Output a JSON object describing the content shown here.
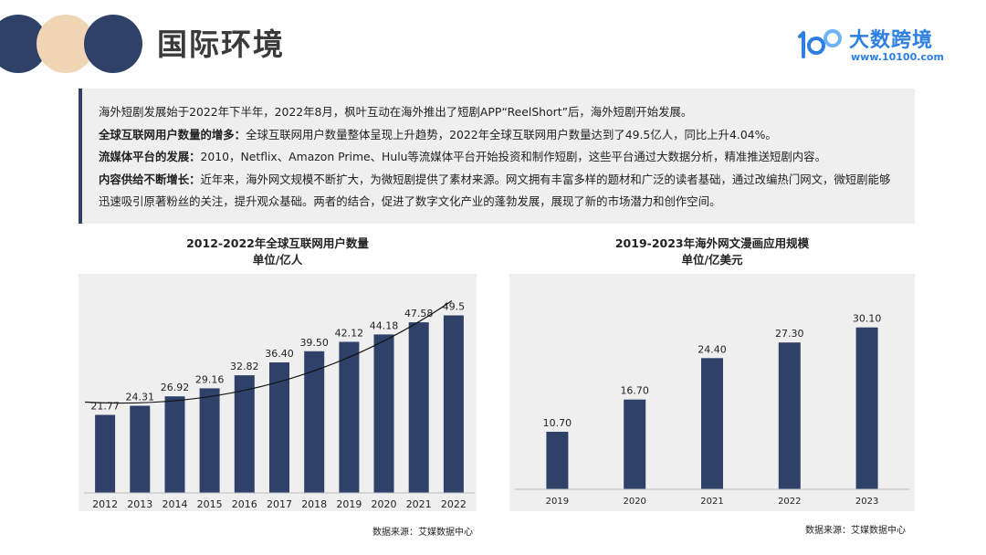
{
  "header": {
    "title": "国际环境",
    "logo_text": "大数跨境",
    "logo_url": "www.10100.com",
    "deco_colors": [
      "#2f4069",
      "#f0d6b4",
      "#2f4069"
    ]
  },
  "intro": {
    "p1": "海外短剧发展始于2022年下半年，2022年8月，枫叶互动在海外推出了短剧APP“ReelShort”后，海外短剧开始发展。",
    "p2_label": "全球互联网用户数量的增多：",
    "p2_text": "全球互联网用户数量整体呈现上升趋势，2022年全球互联网用户数量达到了49.5亿人，同比上升4.04%。",
    "p3_label": "流媒体平台的发展：",
    "p3_text": "2010，Netflix、Amazon Prime、Hulu等流媒体平台开始投资和制作短剧，这些平台通过大数据分析，精准推送短剧内容。",
    "p4_label": "内容供给不断增长：",
    "p4_text": "近年来，海外网文规模不断扩大，为微短剧提供了素材来源。网文拥有丰富多样的题材和广泛的读者基础，通过改编热门网文，微短剧能够迅速吸引原著粉丝的关注，提升观众基础。两者的结合，促进了数字文化产业的蓬勃发展，展现了新的市场潜力和创作空间。"
  },
  "chart_data": [
    {
      "type": "bar",
      "title": "2012-2022年全球互联网用户数量",
      "subtitle": "单位/亿人",
      "categories": [
        "2012",
        "2013",
        "2014",
        "2015",
        "2016",
        "2017",
        "2018",
        "2019",
        "2020",
        "2021",
        "2022"
      ],
      "values": [
        21.77,
        24.31,
        26.92,
        29.16,
        32.82,
        36.4,
        39.5,
        42.12,
        44.18,
        47.58,
        49.5
      ],
      "labels": [
        "21.77",
        "24.31",
        "26.92",
        "29.16",
        "32.82",
        "36.40",
        "39.50",
        "42.12",
        "44.18",
        "47.58",
        "49.5"
      ],
      "trendline": true,
      "ylim": [
        0,
        56
      ],
      "bar_color": "#2f4069",
      "source": "数据来源：艾媒数据中心"
    },
    {
      "type": "bar",
      "title": "2019-2023年海外网文漫画应用规模",
      "subtitle": "单位/亿美元",
      "categories": [
        "2019",
        "2020",
        "2021",
        "2022",
        "2023"
      ],
      "values": [
        10.7,
        16.7,
        24.4,
        27.3,
        30.1
      ],
      "labels": [
        "10.70",
        "16.70",
        "24.40",
        "27.30",
        "30.10"
      ],
      "trendline": false,
      "ylim": [
        0,
        36
      ],
      "bar_color": "#2f4069",
      "source": "数据来源：艾媒数据中心"
    }
  ]
}
